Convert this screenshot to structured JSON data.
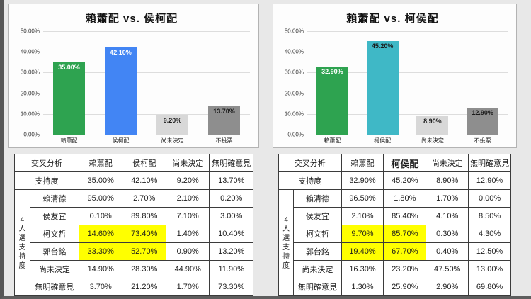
{
  "chart_data": [
    {
      "type": "bar",
      "title": "賴蕭配 vs. 侯柯配",
      "categories": [
        "賴蕭配",
        "侯柯配",
        "尚未決定",
        "不投票"
      ],
      "values": [
        35.0,
        42.1,
        9.2,
        13.7
      ],
      "value_labels": [
        "35.00%",
        "42.10%",
        "9.20%",
        "13.70%"
      ],
      "bar_colors": [
        "#2EA350",
        "#4285F4",
        "#D8D8D8",
        "#8E8E8E"
      ],
      "value_label_colors": [
        "#FFFFFF",
        "#FFFFFF",
        "#1A1A1A",
        "#1A1A1A"
      ],
      "ylim": [
        0,
        50
      ],
      "y_ticks": [
        "50.00%",
        "40.00%",
        "30.00%",
        "20.00%",
        "10.00%",
        "0.00%"
      ],
      "grid": true,
      "legend": false
    },
    {
      "type": "bar",
      "title": "賴蕭配 vs. 柯侯配",
      "categories": [
        "賴蕭配",
        "柯侯配",
        "尚未決定",
        "不投票"
      ],
      "values": [
        32.9,
        45.2,
        8.9,
        12.9
      ],
      "value_labels": [
        "32.90%",
        "45.20%",
        "8.90%",
        "12.90%"
      ],
      "bar_colors": [
        "#2EA350",
        "#3FB8C6",
        "#D8D8D8",
        "#8E8E8E"
      ],
      "value_label_colors": [
        "#FFFFFF",
        "#1A1A1A",
        "#1A1A1A",
        "#1A1A1A"
      ],
      "ylim": [
        0,
        50
      ],
      "y_ticks": [
        "50.00%",
        "40.00%",
        "30.00%",
        "20.00%",
        "10.00%",
        "0.00%"
      ],
      "grid": true,
      "legend": false
    }
  ],
  "tables": [
    {
      "header": [
        "交叉分析",
        "賴蕭配",
        "侯柯配",
        "尚未決定",
        "無明確意見"
      ],
      "header_emphasis": [
        false,
        false,
        false,
        false,
        false
      ],
      "support_label": "支持度",
      "support_values": [
        "35.00%",
        "42.10%",
        "9.20%",
        "13.70%"
      ],
      "group_label": "4人選支持度",
      "highlight_color": "#FFFF00",
      "rows": [
        {
          "label": "賴清德",
          "values": [
            "95.00%",
            "2.70%",
            "2.10%",
            "0.20%"
          ],
          "highlights": [
            false,
            false,
            false,
            false
          ]
        },
        {
          "label": "侯友宜",
          "values": [
            "0.10%",
            "89.80%",
            "7.10%",
            "3.00%"
          ],
          "highlights": [
            false,
            false,
            false,
            false
          ]
        },
        {
          "label": "柯文哲",
          "values": [
            "14.60%",
            "73.40%",
            "1.40%",
            "10.40%"
          ],
          "highlights": [
            true,
            true,
            false,
            false
          ]
        },
        {
          "label": "郭台銘",
          "values": [
            "33.30%",
            "52.70%",
            "0.90%",
            "13.20%"
          ],
          "highlights": [
            true,
            true,
            false,
            false
          ]
        },
        {
          "label": "尚未決定",
          "values": [
            "14.90%",
            "28.30%",
            "44.90%",
            "11.90%"
          ],
          "highlights": [
            false,
            false,
            false,
            false
          ]
        },
        {
          "label": "無明確意見",
          "values": [
            "3.70%",
            "21.20%",
            "1.70%",
            "73.30%"
          ],
          "highlights": [
            false,
            false,
            false,
            false
          ]
        }
      ]
    },
    {
      "header": [
        "交叉分析",
        "賴蕭配",
        "柯侯配",
        "尚未決定",
        "無明確意見"
      ],
      "header_emphasis": [
        false,
        false,
        true,
        false,
        false
      ],
      "support_label": "支持度",
      "support_values": [
        "32.90%",
        "45.20%",
        "8.90%",
        "12.90%"
      ],
      "group_label": "4人選支持度",
      "highlight_color": "#FFFF00",
      "rows": [
        {
          "label": "賴清德",
          "values": [
            "96.50%",
            "1.80%",
            "1.70%",
            "0.00%"
          ],
          "highlights": [
            false,
            false,
            false,
            false
          ]
        },
        {
          "label": "侯友宜",
          "values": [
            "2.10%",
            "85.40%",
            "4.10%",
            "8.50%"
          ],
          "highlights": [
            false,
            false,
            false,
            false
          ]
        },
        {
          "label": "柯文哲",
          "values": [
            "9.70%",
            "85.70%",
            "0.30%",
            "4.30%"
          ],
          "highlights": [
            true,
            true,
            false,
            false
          ]
        },
        {
          "label": "郭台銘",
          "values": [
            "19.40%",
            "67.70%",
            "0.40%",
            "12.50%"
          ],
          "highlights": [
            true,
            true,
            false,
            false
          ]
        },
        {
          "label": "尚未決定",
          "values": [
            "16.30%",
            "23.20%",
            "47.50%",
            "13.00%"
          ],
          "highlights": [
            false,
            false,
            false,
            false
          ]
        },
        {
          "label": "無明確意見",
          "values": [
            "1.30%",
            "25.90%",
            "2.90%",
            "69.80%"
          ],
          "highlights": [
            false,
            false,
            false,
            false
          ]
        }
      ]
    }
  ]
}
